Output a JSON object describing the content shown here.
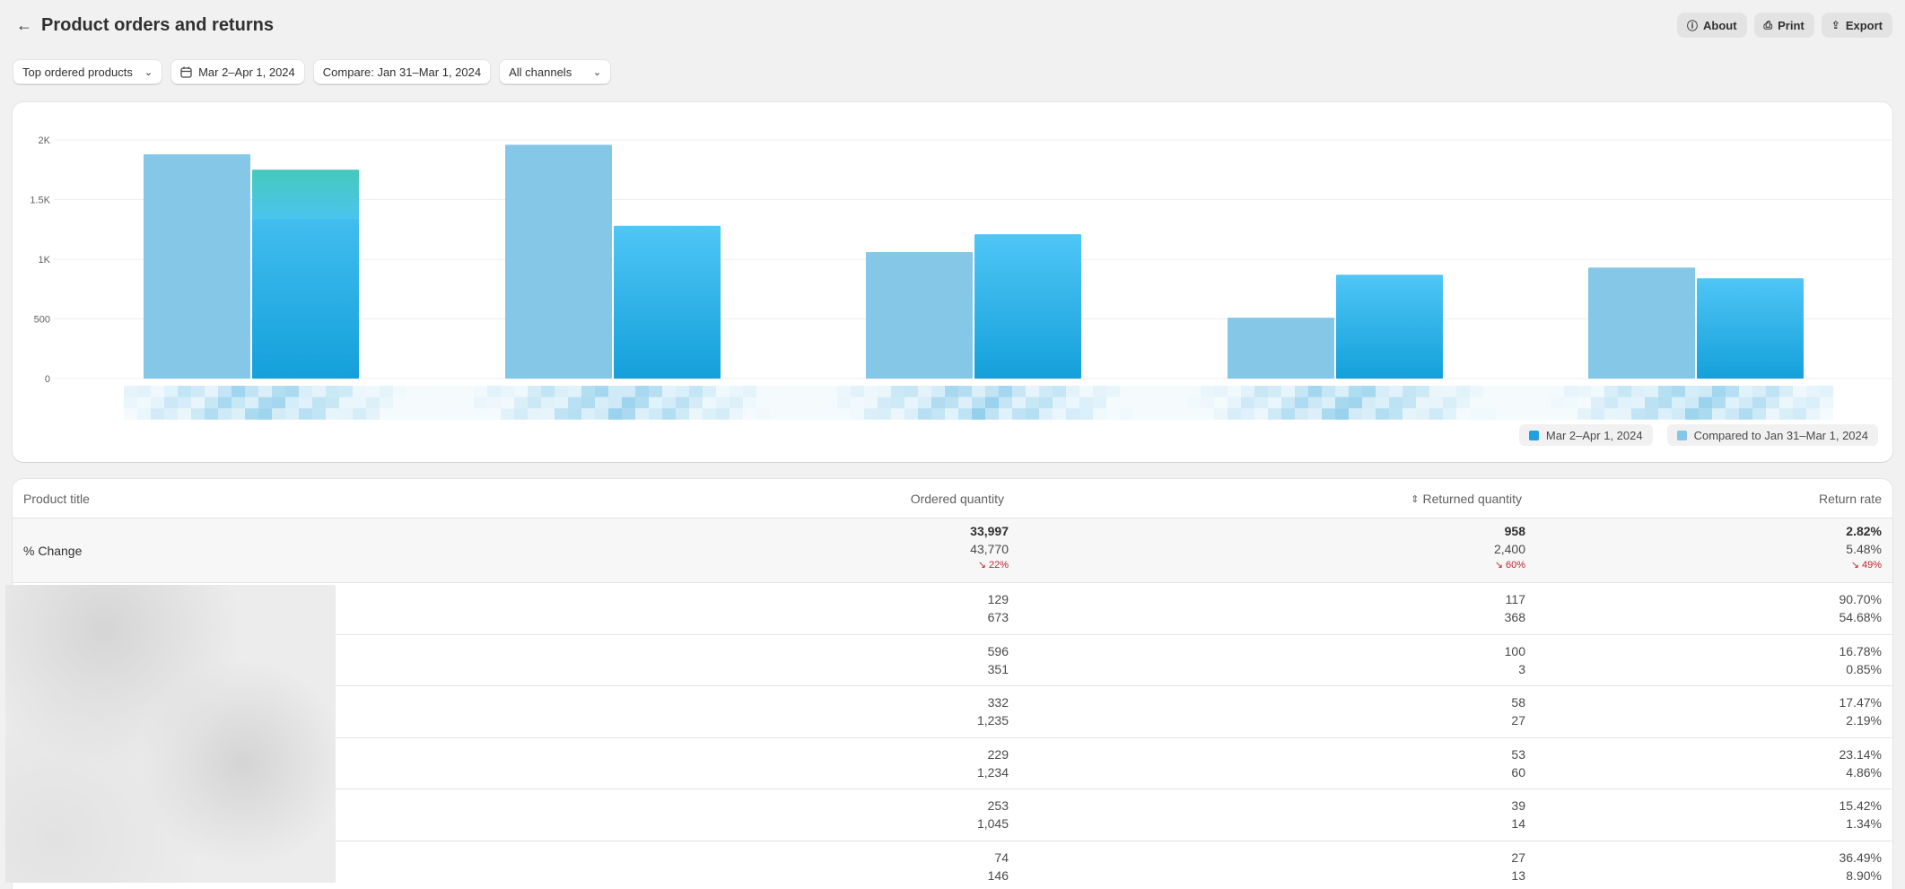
{
  "header": {
    "title": "Product orders and returns",
    "about": "About",
    "print": "Print",
    "export": "Export"
  },
  "filters": {
    "report": "Top ordered products",
    "date_range": "Mar 2–Apr 1, 2024",
    "compare": "Compare: Jan 31–Mar 1, 2024",
    "channels": "All channels"
  },
  "colors": {
    "current": "#1da1e0",
    "comparison": "#85c7e6",
    "highlight": "#47c9c0",
    "negative": "#c0262d"
  },
  "chart_data": {
    "type": "bar",
    "categories": [
      "",
      "",
      "",
      "",
      ""
    ],
    "series": [
      {
        "name": "Compared to Jan 31–Mar 1, 2024",
        "values": [
          1880,
          1960,
          1060,
          510,
          930
        ]
      },
      {
        "name": "Mar 2–Apr 1, 2024",
        "values": [
          1750,
          1280,
          1210,
          870,
          840
        ]
      }
    ],
    "yticks": [
      "0",
      "500",
      "1K",
      "1.5K",
      "2K"
    ],
    "ylim": [
      0,
      2000
    ],
    "grid": true,
    "legend_position": "bottom-right",
    "legend": [
      "Mar 2–Apr 1, 2024",
      "Compared to Jan 31–Mar 1, 2024"
    ]
  },
  "table": {
    "columns": [
      "Product title",
      "Ordered quantity",
      "Returned quantity",
      "Return rate"
    ],
    "summary": {
      "label": "% Change",
      "ordered": {
        "current": "33,997",
        "previous": "43,770",
        "change": "22%"
      },
      "returned": {
        "current": "958",
        "previous": "2,400",
        "change": "60%"
      },
      "rate": {
        "current": "2.82%",
        "previous": "5.48%",
        "change": "49%"
      }
    },
    "rows": [
      {
        "ordered": [
          "129",
          "673"
        ],
        "returned": [
          "117",
          "368"
        ],
        "rate": [
          "90.70%",
          "54.68%"
        ]
      },
      {
        "ordered": [
          "596",
          "351"
        ],
        "returned": [
          "100",
          "3"
        ],
        "rate": [
          "16.78%",
          "0.85%"
        ]
      },
      {
        "ordered": [
          "332",
          "1,235"
        ],
        "returned": [
          "58",
          "27"
        ],
        "rate": [
          "17.47%",
          "2.19%"
        ]
      },
      {
        "ordered": [
          "229",
          "1,234"
        ],
        "returned": [
          "53",
          "60"
        ],
        "rate": [
          "23.14%",
          "4.86%"
        ]
      },
      {
        "ordered": [
          "253",
          "1,045"
        ],
        "returned": [
          "39",
          "14"
        ],
        "rate": [
          "15.42%",
          "1.34%"
        ]
      },
      {
        "ordered": [
          "74",
          "146"
        ],
        "returned": [
          "27",
          "13"
        ],
        "rate": [
          "36.49%",
          "8.90%"
        ]
      }
    ]
  }
}
